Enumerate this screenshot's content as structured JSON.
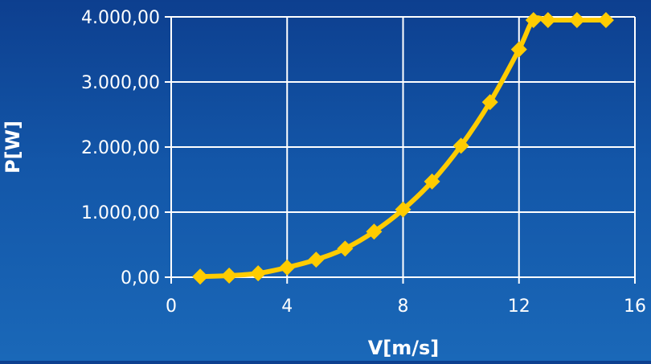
{
  "chart_data": {
    "type": "scatter",
    "title": "",
    "xlabel": "V[m/s]",
    "ylabel": "P[W]",
    "xlim": [
      0,
      16
    ],
    "ylim": [
      0,
      4000
    ],
    "x_ticks": [
      0,
      4,
      8,
      12,
      16
    ],
    "x_tick_labels": [
      "0",
      "4",
      "8",
      "12",
      "16"
    ],
    "y_ticks": [
      0,
      1000,
      2000,
      3000,
      4000
    ],
    "y_tick_labels": [
      "0,00",
      "1.000,00",
      "2.000,00",
      "3.000,00",
      "4.000,00"
    ],
    "grid": true,
    "legend": "none",
    "series": [
      {
        "marker": "diamond",
        "line": "smooth",
        "x": [
          1,
          2,
          3,
          4,
          5,
          6,
          7,
          8,
          9,
          10,
          11,
          12,
          12.5,
          13,
          14,
          15
        ],
        "y": [
          10,
          25,
          60,
          150,
          270,
          440,
          700,
          1040,
          1470,
          2020,
          2690,
          3500,
          3950,
          3950,
          3950,
          3950
        ]
      }
    ],
    "colors": {
      "series": "#ffcc00",
      "grid": "#ffffff",
      "text": "#ffffff"
    }
  }
}
